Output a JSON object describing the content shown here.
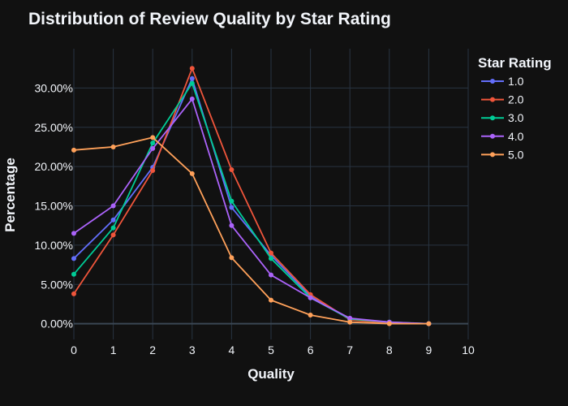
{
  "chart_data": {
    "type": "line",
    "title": "Distribution of Review Quality by Star Rating",
    "xlabel": "Quality",
    "ylabel": "Percentage",
    "x": [
      0,
      1,
      2,
      3,
      4,
      5,
      6,
      7,
      8,
      9
    ],
    "xlim": [
      0,
      10
    ],
    "ylim": [
      -2,
      35
    ],
    "x_ticks": [
      0,
      1,
      2,
      3,
      4,
      5,
      6,
      7,
      8,
      9,
      10
    ],
    "y_ticks": [
      0,
      5,
      10,
      15,
      20,
      25,
      30
    ],
    "y_tick_format": "percent-2dp",
    "grid": true,
    "legend_title": "Star Rating",
    "legend_position": "right",
    "series": [
      {
        "name": "1.0",
        "color": "#636efa",
        "values": [
          8.3,
          13.2,
          19.9,
          31.2,
          14.8,
          8.7,
          3.5,
          0.6,
          0.1,
          0.0
        ]
      },
      {
        "name": "2.0",
        "color": "#ef553b",
        "values": [
          3.8,
          11.3,
          19.5,
          32.5,
          19.6,
          9.0,
          3.7,
          0.5,
          0.1,
          0.0
        ]
      },
      {
        "name": "3.0",
        "color": "#00cc96",
        "values": [
          6.3,
          12.2,
          23.0,
          30.6,
          15.6,
          8.3,
          3.3,
          0.6,
          0.2,
          0.0
        ]
      },
      {
        "name": "4.0",
        "color": "#ab63fa",
        "values": [
          11.5,
          15.0,
          22.3,
          28.6,
          12.5,
          6.2,
          3.3,
          0.7,
          0.2,
          0.0
        ]
      },
      {
        "name": "5.0",
        "color": "#ffa15a",
        "values": [
          22.1,
          22.5,
          23.7,
          19.1,
          8.4,
          3.0,
          1.1,
          0.2,
          0.0,
          0.0
        ]
      }
    ]
  }
}
